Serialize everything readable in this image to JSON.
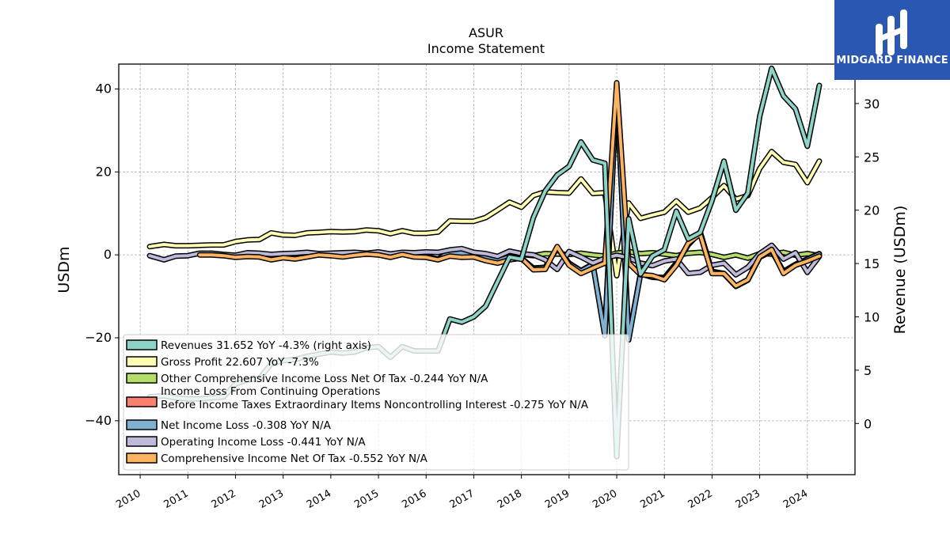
{
  "brand": {
    "name": "MIDGARD FINANCE",
    "color": "#2a57b2"
  },
  "chart_data": {
    "type": "line",
    "title": "ASUR",
    "subtitle": "Income Statement",
    "ylabel": "USDm",
    "ylabel_right": "Revenue (USDm)",
    "ylim": [
      -53,
      46
    ],
    "ylim_right": [
      -4.8,
      33.7
    ],
    "yticks": [
      -40,
      -20,
      0,
      20,
      40
    ],
    "yticks_right": [
      0,
      5,
      10,
      15,
      20,
      25,
      30
    ],
    "xlim": [
      2009.55,
      2025.0
    ],
    "xticks": [
      "2010",
      "2011",
      "2012",
      "2013",
      "2014",
      "2015",
      "2016",
      "2017",
      "2018",
      "2019",
      "2020",
      "2021",
      "2022",
      "2023",
      "2024"
    ],
    "grid": true,
    "legend_position": "lower-left",
    "series": [
      {
        "name": "Revenues  31.652 YoY -4.3% (right axis)",
        "axis": "right",
        "color": "#8dd3c7",
        "x": [
          2010.2,
          2010.5,
          2010.75,
          2011.0,
          2011.25,
          2011.5,
          2011.75,
          2012.0,
          2012.25,
          2012.5,
          2012.75,
          2013.0,
          2013.25,
          2013.5,
          2013.75,
          2014.0,
          2014.25,
          2014.5,
          2014.75,
          2015.0,
          2015.25,
          2015.5,
          2015.75,
          2016.0,
          2016.25,
          2016.5,
          2016.75,
          2017.0,
          2017.25,
          2017.5,
          2017.75,
          2018.0,
          2018.25,
          2018.5,
          2018.75,
          2019.0,
          2019.25,
          2019.5,
          2019.75,
          2020.0,
          2020.25,
          2020.5,
          2020.75,
          2021.0,
          2021.25,
          2021.5,
          2021.75,
          2022.0,
          2022.25,
          2022.5,
          2022.75,
          2023.0,
          2023.25,
          2023.5,
          2023.75,
          2024.0,
          2024.25
        ],
        "values": [
          2.5,
          2.6,
          2.4,
          2.3,
          2.3,
          2.4,
          2.5,
          3.7,
          4.1,
          4.2,
          5.6,
          5.9,
          6.0,
          6.3,
          6.5,
          6.7,
          6.6,
          6.7,
          7.1,
          7.2,
          6.2,
          7.2,
          6.8,
          6.8,
          6.8,
          9.8,
          9.5,
          10.0,
          11.0,
          13.3,
          15.6,
          15.4,
          19.3,
          21.8,
          23.3,
          24.1,
          26.4,
          24.7,
          24.4,
          -3.1,
          19.2,
          14.0,
          15.7,
          16.3,
          19.9,
          17.3,
          17.9,
          20.9,
          24.6,
          20.0,
          21.6,
          28.8,
          33.3,
          30.7,
          29.5,
          26.0,
          31.7
        ]
      },
      {
        "name": "Gross Profit  22.607 YoY -7.3%",
        "axis": "left",
        "color": "#ffffb3",
        "x": [
          2010.2,
          2010.5,
          2010.75,
          2011.0,
          2011.25,
          2011.5,
          2011.75,
          2012.0,
          2012.25,
          2012.5,
          2012.75,
          2013.0,
          2013.25,
          2013.5,
          2013.75,
          2014.0,
          2014.25,
          2014.5,
          2014.75,
          2015.0,
          2015.25,
          2015.5,
          2015.75,
          2016.0,
          2016.25,
          2016.5,
          2016.75,
          2017.0,
          2017.25,
          2017.5,
          2017.75,
          2018.0,
          2018.25,
          2018.5,
          2018.75,
          2019.0,
          2019.25,
          2019.5,
          2019.75,
          2020.0,
          2020.25,
          2020.5,
          2020.75,
          2021.0,
          2021.25,
          2021.5,
          2021.75,
          2022.0,
          2022.25,
          2022.5,
          2022.75,
          2023.0,
          2023.25,
          2023.5,
          2023.75,
          2024.0,
          2024.25
        ],
        "values": [
          2.0,
          2.5,
          2.2,
          2.2,
          2.3,
          2.4,
          2.4,
          3.2,
          3.6,
          3.7,
          5.3,
          4.8,
          4.7,
          5.3,
          5.4,
          5.6,
          5.5,
          5.6,
          6.0,
          5.8,
          5.1,
          5.8,
          5.2,
          5.2,
          5.5,
          8.2,
          8.1,
          8.1,
          9.0,
          10.8,
          12.7,
          11.5,
          14.3,
          15.2,
          15.0,
          14.9,
          18.3,
          14.8,
          15.0,
          -5.0,
          12.5,
          8.8,
          9.6,
          10.3,
          13.0,
          10.3,
          11.3,
          13.8,
          16.7,
          13.4,
          14.3,
          20.8,
          24.9,
          22.3,
          21.8,
          17.4,
          22.6
        ]
      },
      {
        "name": "Other Comprehensive Income Loss Net Of Tax  -0.244 YoY N/A",
        "axis": "left",
        "color": "#b3de69",
        "x": [
          2017.75,
          2018.0,
          2018.25,
          2018.5,
          2018.75,
          2019.0,
          2019.25,
          2019.5,
          2019.75,
          2020.0,
          2020.25,
          2020.5,
          2020.75,
          2021.0,
          2021.25,
          2021.5,
          2021.75,
          2022.0,
          2022.25,
          2022.5,
          2022.75,
          2023.0,
          2023.25,
          2023.5,
          2023.75,
          2024.0,
          2024.25
        ],
        "values": [
          0.3,
          0.1,
          -0.2,
          0.3,
          0.2,
          0.1,
          0.4,
          0.0,
          -0.3,
          0.4,
          0.8,
          0.3,
          0.5,
          0.2,
          -0.2,
          0.4,
          0.6,
          0.1,
          -0.6,
          0.0,
          -0.8,
          0.3,
          0.2,
          0.6,
          -0.1,
          0.3,
          -0.2
        ]
      },
      {
        "name": "Income Loss From Continuing Operations Before Income Taxes Extraordinary Items Noncontrolling Interest  -0.275 YoY N/A",
        "axis": "left",
        "color": "#fb8072",
        "x": [
          2011.25,
          2011.5,
          2011.75,
          2012.0,
          2012.25,
          2012.5,
          2012.75,
          2013.0,
          2013.25,
          2013.5,
          2013.75,
          2014.0,
          2014.25,
          2014.5,
          2014.75,
          2015.0,
          2015.25,
          2015.5,
          2015.75,
          2016.0,
          2016.25,
          2016.5,
          2016.75,
          2017.0,
          2017.25,
          2017.5,
          2017.75,
          2018.0,
          2018.25,
          2018.5,
          2018.75,
          2019.0,
          2019.25,
          2019.5,
          2019.75,
          2020.0,
          2020.25,
          2020.5,
          2020.75,
          2021.0,
          2021.25,
          2021.5,
          2021.75,
          2022.0,
          2022.25,
          2022.5,
          2022.75,
          2023.0,
          2023.25,
          2023.5,
          2023.75,
          2024.0,
          2024.25
        ],
        "values": [
          0.1,
          0.1,
          0.0,
          -0.4,
          -0.2,
          -0.3,
          -0.8,
          -0.5,
          -0.6,
          -0.2,
          0.2,
          0.0,
          -0.3,
          0.1,
          0.3,
          0.2,
          -0.3,
          0.3,
          -0.2,
          -0.4,
          -1.0,
          0.8,
          0.5,
          0.2,
          -0.6,
          -1.3,
          -0.4,
          -0.8,
          -3.2,
          -3.0,
          1.8,
          -2.0,
          -3.8,
          -2.2,
          -19.0,
          40.0,
          -20.0,
          -4.5,
          -5.3,
          -5.5,
          -2.0,
          2.5,
          5.5,
          -4.0,
          -4.5,
          -7.5,
          -6.0,
          -0.5,
          1.0,
          -4.0,
          -2.3,
          -1.0,
          0.3
        ]
      },
      {
        "name": "Net Income Loss  -0.308 YoY N/A",
        "axis": "left",
        "color": "#80b1d3",
        "x": [
          2011.25,
          2011.5,
          2011.75,
          2012.0,
          2012.25,
          2012.5,
          2012.75,
          2013.0,
          2013.25,
          2013.5,
          2013.75,
          2014.0,
          2014.25,
          2014.5,
          2014.75,
          2015.0,
          2015.25,
          2015.5,
          2015.75,
          2016.0,
          2016.25,
          2016.5,
          2016.75,
          2017.0,
          2017.25,
          2017.5,
          2017.75,
          2018.0,
          2018.25,
          2018.5,
          2018.75,
          2019.0,
          2019.25,
          2019.5,
          2019.75,
          2020.0,
          2020.25,
          2020.5,
          2020.75,
          2021.0,
          2021.25,
          2021.5,
          2021.75,
          2022.0,
          2022.25,
          2022.5,
          2022.75,
          2023.0,
          2023.25,
          2023.5,
          2023.75,
          2024.0,
          2024.25
        ],
        "values": [
          0.1,
          0.1,
          0.0,
          -0.5,
          -0.3,
          -0.4,
          -0.9,
          -0.6,
          -0.7,
          -0.3,
          0.1,
          -0.1,
          -0.4,
          0.0,
          0.2,
          0.1,
          -0.4,
          0.2,
          -0.3,
          -0.5,
          -1.1,
          0.7,
          0.4,
          0.1,
          -0.7,
          -1.4,
          -0.5,
          -0.9,
          -3.3,
          -3.1,
          1.7,
          -2.1,
          -3.9,
          -2.3,
          -19.5,
          40.5,
          -20.5,
          -4.6,
          -5.4,
          -5.6,
          -2.1,
          2.4,
          5.4,
          -4.1,
          -4.6,
          -7.6,
          -6.1,
          -0.6,
          0.9,
          -4.1,
          -2.4,
          -1.1,
          0.2
        ]
      },
      {
        "name": "Operating Income Loss  -0.441 YoY N/A",
        "axis": "left",
        "color": "#bebada",
        "x": [
          2010.2,
          2010.5,
          2010.75,
          2011.0,
          2011.25,
          2011.5,
          2011.75,
          2012.0,
          2012.25,
          2012.5,
          2012.75,
          2013.0,
          2013.25,
          2013.5,
          2013.75,
          2014.0,
          2014.25,
          2014.5,
          2014.75,
          2015.0,
          2015.25,
          2015.5,
          2015.75,
          2016.0,
          2016.25,
          2016.5,
          2016.75,
          2017.0,
          2017.25,
          2017.5,
          2017.75,
          2018.0,
          2018.25,
          2018.5,
          2018.75,
          2019.0,
          2019.25,
          2019.5,
          2019.75,
          2020.0,
          2020.25,
          2020.5,
          2020.75,
          2021.0,
          2021.25,
          2021.5,
          2021.75,
          2022.0,
          2022.25,
          2022.5,
          2022.75,
          2023.0,
          2023.25,
          2023.5,
          2023.75,
          2024.0,
          2024.25
        ],
        "values": [
          -0.2,
          -1.2,
          -0.3,
          -0.2,
          0.4,
          0.4,
          0.1,
          -0.1,
          0.5,
          0.4,
          0.1,
          0.3,
          0.4,
          0.6,
          0.3,
          0.4,
          0.5,
          0.6,
          0.4,
          0.7,
          0.2,
          0.6,
          0.5,
          0.7,
          0.6,
          1.2,
          1.5,
          0.6,
          0.3,
          -0.4,
          0.9,
          0.3,
          0.0,
          -1.2,
          -3.5,
          0.8,
          -0.5,
          -2.0,
          -0.8,
          -0.1,
          -0.7,
          -2.0,
          -2.6,
          -1.5,
          -1.0,
          -4.5,
          -4.2,
          -2.5,
          -2.0,
          -4.8,
          -3.0,
          0.3,
          2.3,
          -1.0,
          0.5,
          -4.2,
          -0.4
        ]
      },
      {
        "name": "Comprehensive Income Net Of Tax  -0.552 YoY N/A",
        "axis": "left",
        "color": "#fdb462",
        "x": [
          2011.25,
          2011.5,
          2011.75,
          2012.0,
          2012.25,
          2012.5,
          2012.75,
          2013.0,
          2013.25,
          2013.5,
          2013.75,
          2014.0,
          2014.25,
          2014.5,
          2014.75,
          2015.0,
          2015.25,
          2015.5,
          2015.75,
          2016.0,
          2016.25,
          2016.5,
          2016.75,
          2017.0,
          2017.25,
          2017.5,
          2017.75,
          2018.0,
          2018.25,
          2018.5,
          2018.75,
          2019.0,
          2019.25,
          2019.5,
          2019.75,
          2020.0,
          2020.25,
          2020.5,
          2020.75,
          2021.0,
          2021.25,
          2021.5,
          2021.75,
          2022.0,
          2022.25,
          2022.5,
          2022.75,
          2023.0,
          2023.25,
          2023.5,
          2023.75,
          2024.0,
          2024.25
        ],
        "values": [
          0.0,
          0.0,
          -0.2,
          -0.6,
          -0.4,
          -0.5,
          -1.2,
          -0.7,
          -1.0,
          -0.5,
          0.0,
          -0.2,
          -0.5,
          -0.1,
          0.2,
          0.0,
          -0.6,
          0.1,
          -0.5,
          -0.6,
          -1.2,
          -0.3,
          -0.6,
          -0.5,
          -1.4,
          -2.0,
          -1.2,
          -0.8,
          -3.6,
          -3.5,
          2.0,
          -2.5,
          -4.5,
          -3.2,
          -2.0,
          41.5,
          -2.0,
          -4.8,
          -5.0,
          -6.0,
          -2.5,
          2.8,
          5.0,
          -4.5,
          -4.5,
          -7.5,
          -6.0,
          -0.5,
          1.3,
          -4.5,
          -2.5,
          -1.5,
          -0.3
        ]
      }
    ]
  }
}
